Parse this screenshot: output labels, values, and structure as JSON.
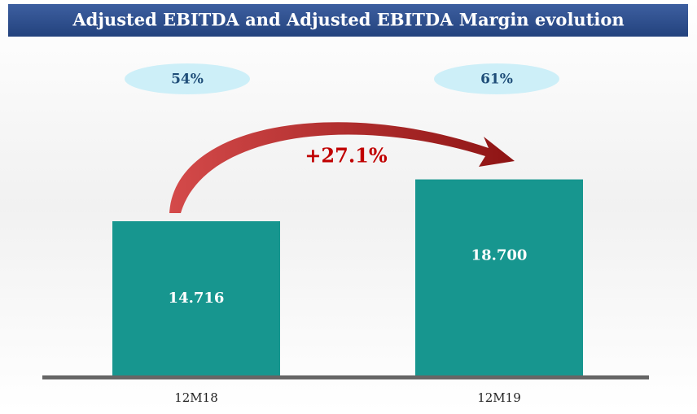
{
  "chart_data": {
    "type": "bar",
    "title": "Adjusted EBITDA and Adjusted EBITDA Margin evolution",
    "categories": [
      "12M18",
      "12M19"
    ],
    "values": [
      14716,
      18700
    ],
    "value_labels": [
      "14.716",
      "18.700"
    ],
    "color": "#17968f",
    "margins": [
      54,
      61
    ],
    "margin_labels": [
      "54%",
      "61%"
    ],
    "annotation": "+27.1%"
  }
}
